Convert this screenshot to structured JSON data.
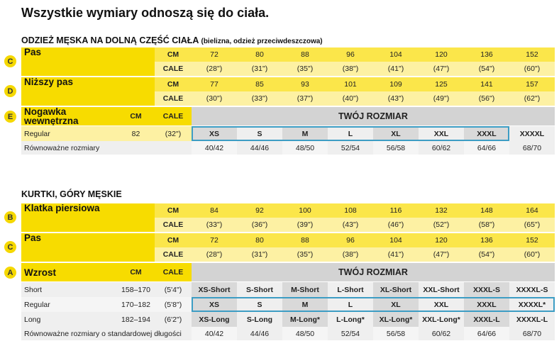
{
  "title": "Wszystkie wymiary odnoszą się do ciała.",
  "sections": [
    {
      "heading": "ODZIEŻ MĘSKA NA DOLNĄ CZĘŚĆ CIAŁA",
      "note": "(bielizna, odzież przeciwdeszczowa)",
      "measures": [
        {
          "letter": "C",
          "label": "Pas",
          "cm_unit": "CM",
          "in_unit": "CALE",
          "cm": [
            72,
            80,
            88,
            96,
            104,
            120,
            136,
            152
          ],
          "inches": [
            "(28\")",
            "(31\")",
            "(35\")",
            "(38\")",
            "(41\")",
            "(47\")",
            "(54\")",
            "(60\")"
          ]
        },
        {
          "letter": "D",
          "label": "Niższy pas",
          "cm_unit": "CM",
          "in_unit": "CALE",
          "cm": [
            77,
            85,
            93,
            101,
            109,
            125,
            141,
            157
          ],
          "inches": [
            "(30\")",
            "(33\")",
            "(37\")",
            "(40\")",
            "(43\")",
            "(49\")",
            "(56\")",
            "(62\")"
          ]
        }
      ],
      "size_header": {
        "letter": "E",
        "label": "Nogawka wewnętrzna",
        "cm_unit": "CM",
        "in_unit": "CALE",
        "title": "TWÓJ ROZMIAR"
      },
      "size_rows": [
        {
          "label": "Regular",
          "cm": 82,
          "inches": "(32\")",
          "sizes": [
            "XS",
            "S",
            "M",
            "L",
            "XL",
            "XXL",
            "XXXL",
            "XXXXL"
          ]
        }
      ],
      "equivalent": {
        "label": "Równoważne rozmiary",
        "sizes": [
          "40/42",
          "44/46",
          "48/50",
          "52/54",
          "56/58",
          "60/62",
          "64/66",
          "68/70"
        ]
      }
    },
    {
      "heading": "KURTKI, GÓRY MĘSKIE",
      "measures": [
        {
          "letter": "B",
          "label": "Klatka piersiowa",
          "cm_unit": "CM",
          "in_unit": "CALE",
          "cm": [
            84,
            92,
            100,
            108,
            116,
            132,
            148,
            164
          ],
          "inches": [
            "(33\")",
            "(36\")",
            "(39\")",
            "(43\")",
            "(46\")",
            "(52\")",
            "(58\")",
            "(65\")"
          ]
        },
        {
          "letter": "C",
          "label": "Pas",
          "cm_unit": "CM",
          "in_unit": "CALE",
          "cm": [
            72,
            80,
            88,
            96,
            104,
            120,
            136,
            152
          ],
          "inches": [
            "(28\")",
            "(31\")",
            "(35\")",
            "(38\")",
            "(41\")",
            "(47\")",
            "(54\")",
            "(60\")"
          ]
        }
      ],
      "size_header": {
        "letter": "A",
        "label": "Wzrost",
        "cm_unit": "CM",
        "in_unit": "CALE",
        "title": "TWÓJ ROZMIAR"
      },
      "size_rows": [
        {
          "label": "Short",
          "cm": "158–170",
          "inches": "(5'4\")",
          "sizes": [
            "XS-Short",
            "S-Short",
            "M-Short",
            "L-Short",
            "XL-Short",
            "XXL-Short",
            "XXXL-S",
            "XXXXL-S"
          ]
        },
        {
          "label": "Regular",
          "cm": "170–182",
          "inches": "(5'8\")",
          "sizes": [
            "XS",
            "S",
            "M",
            "L",
            "XL",
            "XXL",
            "XXXL",
            "XXXXL*"
          ]
        },
        {
          "label": "Long",
          "cm": "182–194",
          "inches": "(6'2\")",
          "sizes": [
            "XS-Long",
            "S-Long",
            "M-Long*",
            "L-Long*",
            "XL-Long*",
            "XXL-Long*",
            "XXXL-L",
            "XXXXL-L"
          ]
        }
      ],
      "equivalent": {
        "label": "Równoważne rozmiary o standardowej długości",
        "sizes": [
          "40/42",
          "44/46",
          "48/50",
          "52/54",
          "56/58",
          "60/62",
          "64/66",
          "68/70"
        ]
      }
    }
  ]
}
